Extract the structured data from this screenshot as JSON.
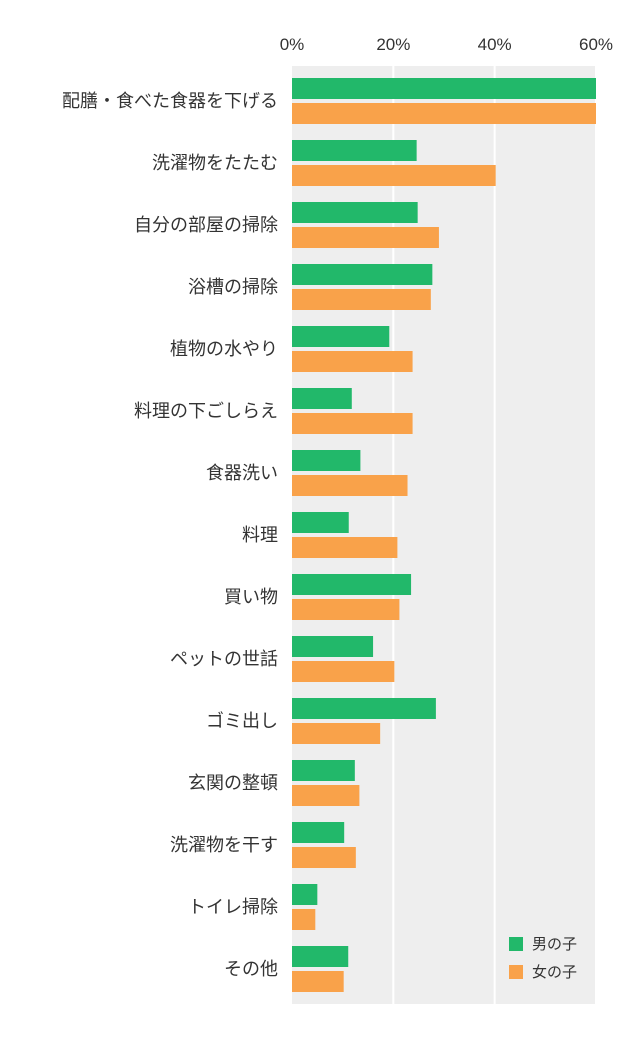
{
  "chart_data": {
    "type": "bar",
    "orientation": "horizontal",
    "categories": [
      "配膳・食べた食器を下げる",
      "洗濯物をたたむ",
      "自分の部屋の掃除",
      "浴槽の掃除",
      "植物の水やり",
      "料理の下ごしらえ",
      "食器洗い",
      "料理",
      "買い物",
      "ペットの世話",
      "ゴミ出し",
      "玄関の整頓",
      "洗濯物を干す",
      "トイレ掃除",
      "その他"
    ],
    "series": [
      {
        "name": "男の子",
        "color": "#22b86a",
        "values": [
          60,
          24.6,
          24.8,
          27.7,
          19.2,
          11.8,
          13.5,
          11.2,
          23.5,
          16.0,
          28.4,
          12.4,
          10.3,
          5.0,
          11.1
        ]
      },
      {
        "name": "女の子",
        "color": "#f9a24a",
        "values": [
          60,
          40.2,
          29.0,
          27.4,
          23.8,
          23.8,
          22.8,
          20.8,
          21.2,
          20.2,
          17.4,
          13.3,
          12.6,
          4.6,
          10.2
        ]
      }
    ],
    "x_ticks": [
      "0%",
      "20%",
      "40%",
      "60%"
    ],
    "xlim": [
      0,
      60
    ],
    "grid": true,
    "legend_position": "bottom-right",
    "plot_background": "#eeeeee"
  }
}
